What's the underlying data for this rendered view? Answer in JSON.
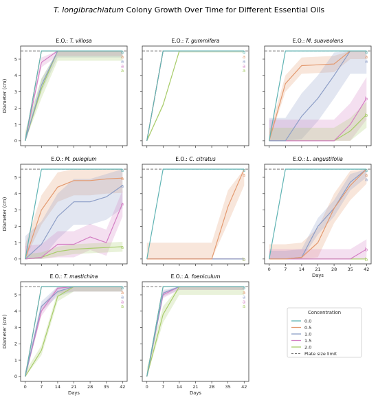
{
  "chart_data": {
    "type": "line",
    "title_prefix": "T. longibrachiatum",
    "title_rest": " Colony Growth Over Time for Different Essential Oils",
    "xlabel": "Days",
    "ylabel": "Diameter (cm)",
    "x": [
      0,
      7,
      14,
      21,
      28,
      35,
      42
    ],
    "xlim": [
      -2,
      44
    ],
    "ylim": [
      -0.3,
      5.8
    ],
    "yticks": [
      0,
      1,
      2,
      3,
      4,
      5
    ],
    "plate_limit": 5.5,
    "legend": {
      "title": "Concentration",
      "entries": [
        "0.0",
        "0.5",
        "1.0",
        "1.5",
        "2.0"
      ],
      "limit_label": "Plate size limit"
    },
    "colors": {
      "0.0": "#5fb3b3",
      "0.5": "#e39a70",
      "1.0": "#8c9dc6",
      "1.5": "#d47fc4",
      "2.0": "#a8cc6a",
      "limit": "#777777"
    },
    "panels": [
      {
        "eo_label": "E.O.: ",
        "species": "T. villosa",
        "series": [
          {
            "conc": "0.0",
            "values": [
              0,
              5.5,
              5.5,
              5.5,
              5.5,
              5.5,
              5.5
            ],
            "band": 0
          },
          {
            "conc": "0.5",
            "values": [
              0,
              5.5,
              5.5,
              5.5,
              5.5,
              5.5,
              5.5
            ],
            "band": 0
          },
          {
            "conc": "1.0",
            "values": [
              0,
              3.4,
              5.5,
              5.5,
              5.5,
              5.5,
              5.5
            ],
            "band": 0.4
          },
          {
            "conc": "1.5",
            "values": [
              0,
              4.8,
              5.5,
              5.5,
              5.5,
              5.5,
              5.5
            ],
            "band": 0.3
          },
          {
            "conc": "2.0",
            "values": [
              0,
              3.2,
              5.5,
              5.5,
              5.5,
              5.5,
              5.5
            ],
            "band": 0.6
          }
        ],
        "letters": [
          "a",
          "a",
          "a",
          "a",
          "a"
        ]
      },
      {
        "eo_label": "E.O.: ",
        "species": "T. gummifera",
        "series": [
          {
            "conc": "0.0",
            "values": [
              0,
              5.5,
              5.5,
              5.5,
              5.5,
              5.5,
              5.5
            ],
            "band": 0
          },
          {
            "conc": "0.5",
            "values": [
              0,
              5.5,
              5.5,
              5.5,
              5.5,
              5.5,
              5.5
            ],
            "band": 0
          },
          {
            "conc": "1.0",
            "values": [
              0,
              5.5,
              5.5,
              5.5,
              5.5,
              5.5,
              5.5
            ],
            "band": 0
          },
          {
            "conc": "1.5",
            "values": [
              0,
              5.5,
              5.5,
              5.5,
              5.5,
              5.5,
              5.5
            ],
            "band": 0
          },
          {
            "conc": "2.0",
            "values": [
              0,
              2.2,
              5.5,
              5.5,
              5.5,
              5.5,
              5.5
            ],
            "band": 0.1
          }
        ],
        "letters": [
          "a",
          "a",
          "a",
          "a",
          "a"
        ]
      },
      {
        "eo_label": "E.O.: ",
        "species": "M. suaveolens",
        "series": [
          {
            "conc": "0.0",
            "values": [
              0,
              5.5,
              5.5,
              5.5,
              5.5,
              5.5,
              5.5
            ],
            "band": 0
          },
          {
            "conc": "0.5",
            "values": [
              0,
              3.5,
              4.6,
              4.65,
              4.7,
              5.5,
              5.5
            ],
            "band": 0.5
          },
          {
            "conc": "1.0",
            "values": [
              0,
              0,
              1.5,
              2.6,
              4.0,
              5.5,
              5.5
            ],
            "band": 1.4
          },
          {
            "conc": "1.5",
            "values": [
              0,
              0,
              0,
              0,
              0,
              1.0,
              2.6
            ],
            "band": 1.3
          },
          {
            "conc": "2.0",
            "values": [
              0,
              0,
              0,
              0,
              0,
              0.6,
              1.6
            ],
            "band": 0.8
          }
        ],
        "letters": [
          "a",
          "a",
          "a",
          "b",
          "b"
        ]
      },
      {
        "eo_label": "E.O.: ",
        "species": "M. pulegium",
        "series": [
          {
            "conc": "0.0",
            "values": [
              0,
              5.5,
              5.5,
              5.5,
              5.5,
              5.5,
              5.5
            ],
            "band": 0
          },
          {
            "conc": "0.5",
            "values": [
              0,
              3.0,
              4.4,
              4.8,
              4.8,
              4.9,
              4.95
            ],
            "band": 0.9
          },
          {
            "conc": "1.0",
            "values": [
              0,
              0.9,
              2.6,
              3.5,
              3.5,
              3.8,
              4.5
            ],
            "band": 1.4
          },
          {
            "conc": "1.5",
            "values": [
              0,
              0.1,
              0.9,
              0.9,
              1.35,
              1.0,
              3.4
            ],
            "band": 0.8
          },
          {
            "conc": "2.0",
            "values": [
              0,
              0.1,
              0.45,
              0.6,
              0.65,
              0.7,
              0.75
            ],
            "band": 0.3
          }
        ],
        "letters": [
          "a",
          "a",
          "a",
          "a",
          "a"
        ]
      },
      {
        "eo_label": "E.O.: ",
        "species": "C. citratus",
        "series": [
          {
            "conc": "0.0",
            "values": [
              0,
              5.5,
              5.5,
              5.5,
              5.5,
              5.5,
              5.5
            ],
            "band": 0
          },
          {
            "conc": "0.5",
            "values": [
              0,
              0,
              0,
              0,
              0,
              3.2,
              5.5
            ],
            "band": 1.0
          },
          {
            "conc": "1.0",
            "values": [
              0,
              0,
              0,
              0,
              0,
              0,
              0
            ],
            "band": 0
          },
          {
            "conc": "1.5",
            "values": [
              0,
              0,
              0,
              0,
              0,
              0,
              0
            ],
            "band": 0
          },
          {
            "conc": "2.0",
            "values": [
              0,
              0,
              0,
              0,
              0,
              0,
              0
            ],
            "band": 0
          }
        ],
        "letters": [
          "a",
          "a",
          "b",
          "b",
          "b"
        ]
      },
      {
        "eo_label": "E.O.: ",
        "species": "L. angustifolia",
        "series": [
          {
            "conc": "0.0",
            "values": [
              0,
              5.5,
              5.5,
              5.5,
              5.5,
              5.5,
              5.5
            ],
            "band": 0
          },
          {
            "conc": "0.5",
            "values": [
              0,
              0,
              0.1,
              1.0,
              3.1,
              4.5,
              5.5
            ],
            "band": 0.9
          },
          {
            "conc": "1.0",
            "values": [
              0,
              0,
              0.1,
              2.0,
              3.1,
              4.7,
              5.5
            ],
            "band": 0.5
          },
          {
            "conc": "1.5",
            "values": [
              0,
              0,
              0,
              0,
              0,
              0,
              0.6
            ],
            "band": 0.6
          },
          {
            "conc": "2.0",
            "values": [
              0,
              0,
              0,
              0,
              0,
              0,
              0
            ],
            "band": 0
          }
        ],
        "letters": [
          "a",
          "a",
          "a",
          "b",
          "b"
        ]
      },
      {
        "eo_label": "E.O.: ",
        "species": "T. mastichina",
        "series": [
          {
            "conc": "0.0",
            "values": [
              0,
              5.5,
              5.5,
              5.5,
              5.5,
              5.5,
              5.5
            ],
            "band": 0
          },
          {
            "conc": "0.5",
            "values": [
              0,
              5.5,
              5.5,
              5.5,
              5.5,
              5.5,
              5.5
            ],
            "band": 0
          },
          {
            "conc": "1.0",
            "values": [
              0,
              4.3,
              5.2,
              5.5,
              5.5,
              5.5,
              5.5
            ],
            "band": 0.3
          },
          {
            "conc": "1.5",
            "values": [
              0,
              4.0,
              5.4,
              5.5,
              5.5,
              5.5,
              5.5
            ],
            "band": 0.3
          },
          {
            "conc": "2.0",
            "values": [
              0,
              1.6,
              4.9,
              5.5,
              5.5,
              5.5,
              5.5
            ],
            "band": 0.3
          }
        ],
        "letters": [
          "a",
          "a",
          "a",
          "a",
          "a"
        ]
      },
      {
        "eo_label": "E.O.: ",
        "species": "A. foeniculum",
        "series": [
          {
            "conc": "0.0",
            "values": [
              0,
              5.5,
              5.5,
              5.5,
              5.5,
              5.5,
              5.5
            ],
            "band": 0
          },
          {
            "conc": "0.5",
            "values": [
              0,
              5.5,
              5.5,
              5.5,
              5.5,
              5.5,
              5.5
            ],
            "band": 0
          },
          {
            "conc": "1.0",
            "values": [
              0,
              5.1,
              5.5,
              5.5,
              5.5,
              5.5,
              5.5
            ],
            "band": 0.2
          },
          {
            "conc": "1.5",
            "values": [
              0,
              5.0,
              5.5,
              5.5,
              5.5,
              5.5,
              5.5
            ],
            "band": 0.2
          },
          {
            "conc": "2.0",
            "values": [
              0,
              3.8,
              5.5,
              5.5,
              5.5,
              5.5,
              5.5
            ],
            "band": 0.5
          }
        ],
        "letters": [
          "a",
          "a",
          "a",
          "a",
          "a"
        ]
      }
    ]
  }
}
